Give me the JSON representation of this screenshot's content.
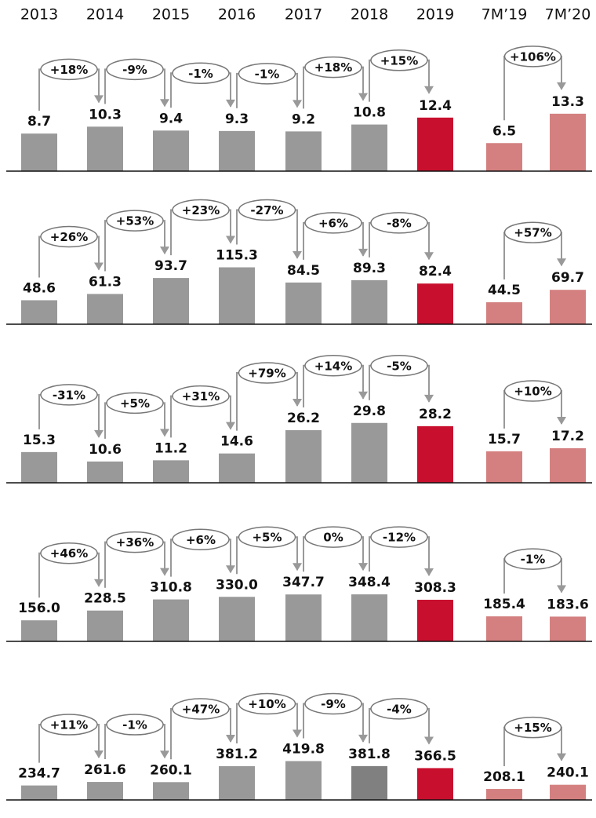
{
  "chart_data": [
    {
      "type": "bar",
      "categories": [
        "2013",
        "2014",
        "2015",
        "2016",
        "2017",
        "2018",
        "2019",
        "7M’19",
        "7M’20"
      ],
      "values": [
        8.7,
        10.3,
        9.4,
        9.3,
        9.2,
        10.8,
        12.4,
        6.5,
        13.3
      ],
      "change_labels": [
        "+18%",
        "-9%",
        "-1%",
        "-1%",
        "+18%",
        "+15%",
        "+106%"
      ],
      "colors": [
        "#999999",
        "#999999",
        "#999999",
        "#999999",
        "#999999",
        "#999999",
        "#c8102e",
        "#d48080",
        "#d48080"
      ],
      "ylim": [
        0,
        20
      ]
    },
    {
      "type": "bar",
      "values": [
        48.6,
        61.3,
        93.7,
        115.3,
        84.5,
        89.3,
        82.4,
        44.5,
        69.7
      ],
      "change_labels": [
        "+26%",
        "+53%",
        "+23%",
        "-27%",
        "+6%",
        "-8%",
        "+57%"
      ],
      "colors": [
        "#999999",
        "#999999",
        "#999999",
        "#999999",
        "#999999",
        "#999999",
        "#c8102e",
        "#d48080",
        "#d48080"
      ],
      "ylim": [
        0,
        175
      ]
    },
    {
      "type": "bar",
      "values": [
        15.3,
        10.6,
        11.2,
        14.6,
        26.2,
        29.8,
        28.2,
        15.7,
        17.2
      ],
      "change_labels": [
        "-31%",
        "+5%",
        "+31%",
        "+79%",
        "+14%",
        "-5%",
        "+10%"
      ],
      "colors": [
        "#999999",
        "#999999",
        "#999999",
        "#999999",
        "#999999",
        "#999999",
        "#c8102e",
        "#d48080",
        "#d48080"
      ],
      "ylim": [
        0,
        43
      ]
    },
    {
      "type": "bar",
      "values": [
        156.0,
        228.5,
        310.8,
        330.0,
        347.7,
        348.4,
        308.3,
        185.4,
        183.6
      ],
      "value_labels": [
        "156.0",
        "228.5",
        "310.8",
        "330.0",
        "347.7",
        "348.4",
        "308.3",
        "185.4",
        "183.6"
      ],
      "change_labels": [
        "+46%",
        "+36%",
        "+6%",
        "+5%",
        "0%",
        "-12%",
        "-1%"
      ],
      "colors": [
        "#999999",
        "#999999",
        "#999999",
        "#999999",
        "#999999",
        "#999999",
        "#c8102e",
        "#d48080",
        "#d48080"
      ],
      "ylim": [
        0,
        640
      ]
    },
    {
      "type": "bar",
      "values": [
        234.7,
        261.6,
        260.1,
        381.2,
        419.8,
        381.8,
        366.5,
        208.1,
        240.1
      ],
      "change_labels": [
        "+11%",
        "-1%",
        "+47%",
        "+10%",
        "-9%",
        "-4%",
        "+15%"
      ],
      "colors": [
        "#999999",
        "#999999",
        "#999999",
        "#999999",
        "#999999",
        "#808080",
        "#c8102e",
        "#d48080",
        "#d48080"
      ],
      "ylim": [
        125,
        780
      ]
    }
  ]
}
